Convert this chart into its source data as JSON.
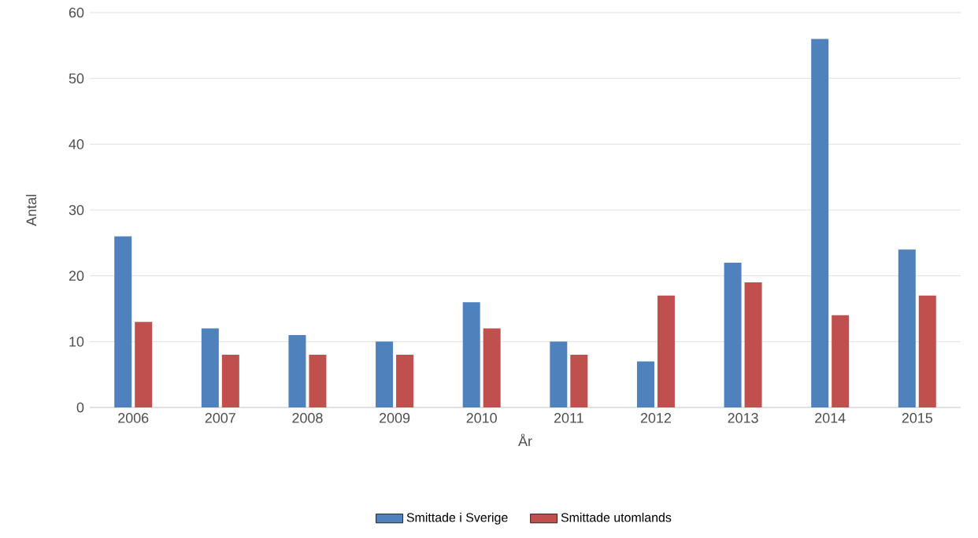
{
  "chart_data": {
    "type": "bar",
    "xlabel": "År",
    "ylabel": "Antal",
    "categories": [
      "2006",
      "2007",
      "2008",
      "2009",
      "2010",
      "2011",
      "2012",
      "2013",
      "2014",
      "2015"
    ],
    "series": [
      {
        "name": "Smittade i Sverige",
        "color": "#4f81bd",
        "values": [
          26,
          12,
          11,
          10,
          16,
          10,
          7,
          22,
          56,
          24
        ]
      },
      {
        "name": "Smittade utomlands",
        "color": "#c0504d",
        "values": [
          13,
          8,
          8,
          8,
          12,
          8,
          17,
          19,
          14,
          17
        ]
      }
    ],
    "ylim": [
      0,
      60
    ],
    "yticks": [
      0,
      10,
      20,
      30,
      40,
      50,
      60
    ],
    "grid": "y",
    "legend": "bottom"
  }
}
